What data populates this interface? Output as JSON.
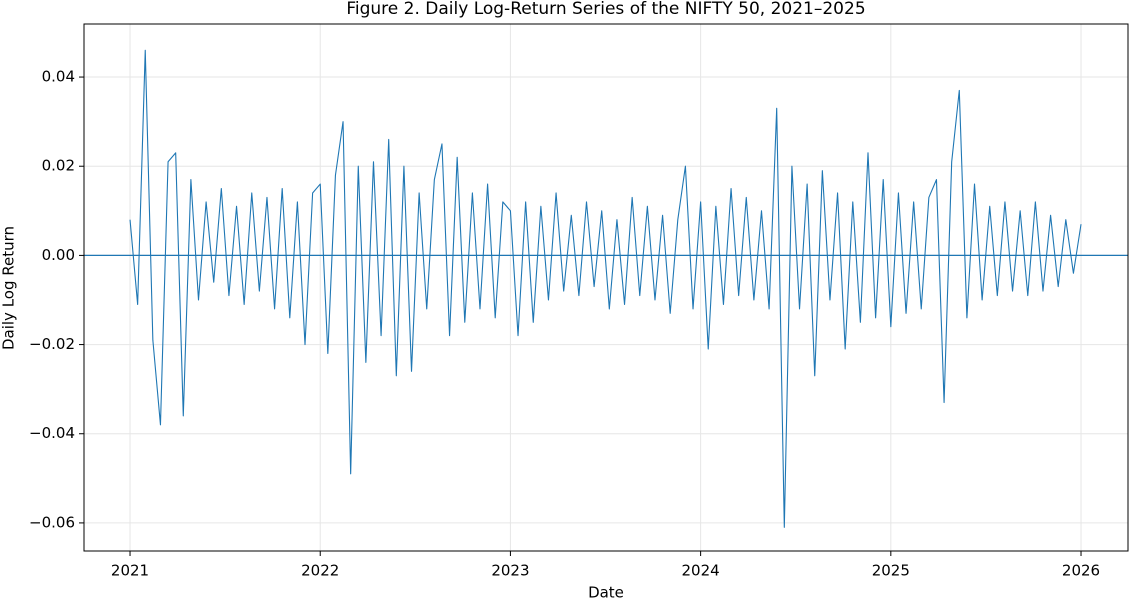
{
  "chart_data": {
    "type": "line",
    "title": "Figure 2. Daily Log-Return Series of the NIFTY 50, 2021–2025",
    "xlabel": "Date",
    "ylabel": "Daily Log Return",
    "x": [
      2021.0,
      2021.04,
      2021.08,
      2021.12,
      2021.16,
      2021.2,
      2021.24,
      2021.28,
      2021.32,
      2021.36,
      2021.4,
      2021.44,
      2021.48,
      2021.52,
      2021.56,
      2021.6,
      2021.64,
      2021.68,
      2021.72,
      2021.76,
      2021.8,
      2021.84,
      2021.88,
      2021.92,
      2021.96,
      2022.0,
      2022.04,
      2022.08,
      2022.12,
      2022.16,
      2022.2,
      2022.24,
      2022.28,
      2022.32,
      2022.36,
      2022.4,
      2022.44,
      2022.48,
      2022.52,
      2022.56,
      2022.6,
      2022.64,
      2022.68,
      2022.72,
      2022.76,
      2022.8,
      2022.84,
      2022.88,
      2022.92,
      2022.96,
      2023.0,
      2023.04,
      2023.08,
      2023.12,
      2023.16,
      2023.2,
      2023.24,
      2023.28,
      2023.32,
      2023.36,
      2023.4,
      2023.44,
      2023.48,
      2023.52,
      2023.56,
      2023.6,
      2023.64,
      2023.68,
      2023.72,
      2023.76,
      2023.8,
      2023.84,
      2023.88,
      2023.92,
      2023.96,
      2024.0,
      2024.04,
      2024.08,
      2024.12,
      2024.16,
      2024.2,
      2024.24,
      2024.28,
      2024.32,
      2024.36,
      2024.4,
      2024.44,
      2024.48,
      2024.52,
      2024.56,
      2024.6,
      2024.64,
      2024.68,
      2024.72,
      2024.76,
      2024.8,
      2024.84,
      2024.88,
      2024.92,
      2024.96,
      2025.0,
      2025.04,
      2025.08,
      2025.12,
      2025.16,
      2025.2,
      2025.24,
      2025.28,
      2025.32,
      2025.36,
      2025.4,
      2025.44,
      2025.48,
      2025.52,
      2025.56,
      2025.6,
      2025.64,
      2025.68,
      2025.72,
      2025.76,
      2025.8,
      2025.84,
      2025.88,
      2025.92,
      2025.96,
      2026.0
    ],
    "series": [
      {
        "color": "#1f77b4",
        "values": [
          0.008,
          -0.011,
          0.046,
          -0.019,
          -0.038,
          0.021,
          0.023,
          -0.036,
          0.017,
          -0.01,
          0.012,
          -0.006,
          0.015,
          -0.009,
          0.011,
          -0.011,
          0.014,
          -0.008,
          0.013,
          -0.012,
          0.015,
          -0.014,
          0.012,
          -0.02,
          0.014,
          0.016,
          -0.022,
          0.018,
          0.03,
          -0.049,
          0.02,
          -0.024,
          0.021,
          -0.018,
          0.026,
          -0.027,
          0.02,
          -0.026,
          0.014,
          -0.012,
          0.017,
          0.025,
          -0.018,
          0.022,
          -0.015,
          0.014,
          -0.012,
          0.016,
          -0.014,
          0.012,
          0.01,
          -0.018,
          0.012,
          -0.015,
          0.011,
          -0.01,
          0.014,
          -0.008,
          0.009,
          -0.009,
          0.012,
          -0.007,
          0.01,
          -0.012,
          0.008,
          -0.011,
          0.013,
          -0.009,
          0.011,
          -0.01,
          0.009,
          -0.013,
          0.008,
          0.02,
          -0.012,
          0.012,
          -0.021,
          0.011,
          -0.011,
          0.015,
          -0.009,
          0.013,
          -0.01,
          0.01,
          -0.012,
          0.033,
          -0.061,
          0.02,
          -0.012,
          0.016,
          -0.027,
          0.019,
          -0.01,
          0.014,
          -0.021,
          0.012,
          -0.015,
          0.023,
          -0.014,
          0.017,
          -0.016,
          0.014,
          -0.013,
          0.012,
          -0.012,
          0.013,
          0.017,
          -0.033,
          0.021,
          0.037,
          -0.014,
          0.016,
          -0.01,
          0.011,
          -0.009,
          0.012,
          -0.008,
          0.01,
          -0.009,
          0.012,
          -0.008,
          0.009,
          -0.007,
          0.008,
          -0.004,
          0.007
        ]
      }
    ],
    "hline": 0,
    "xlim": [
      2020.758,
      2026.247
    ],
    "xticks": [
      2021,
      2022,
      2023,
      2024,
      2025,
      2026
    ],
    "ylim": [
      -0.0663,
      0.0519
    ],
    "yticks": [
      {
        "value": -0.06,
        "label": "−0.06"
      },
      {
        "value": -0.04,
        "label": "−0.04"
      },
      {
        "value": -0.02,
        "label": "−0.02"
      },
      {
        "value": 0,
        "label": "0.00"
      },
      {
        "value": 0.02,
        "label": "0.02"
      },
      {
        "value": 0.04,
        "label": "0.04"
      }
    ],
    "grid": true
  }
}
